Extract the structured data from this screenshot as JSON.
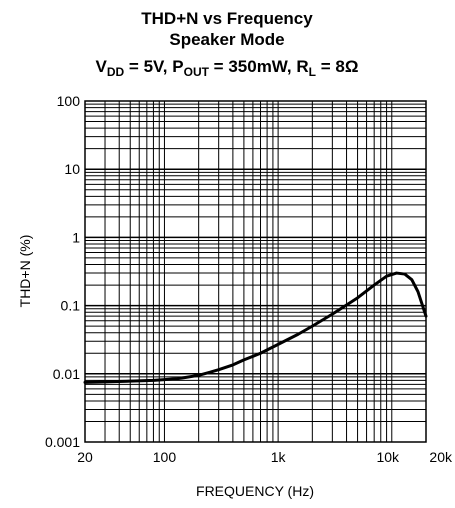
{
  "chart_data": {
    "type": "line",
    "title": "THD+N vs Frequency",
    "subtitle": "Speaker Mode",
    "condition": {
      "vdd_symbol": "V",
      "vdd_sub": "DD",
      "vdd_value": " = 5V, ",
      "pout_symbol": "P",
      "pout_sub": "OUT",
      "pout_value": " = 350mW, ",
      "rl_symbol": "R",
      "rl_sub": "L",
      "rl_value": " = 8Ω"
    },
    "xlabel": "FREQUENCY (Hz)",
    "ylabel": "THD+N (%)",
    "x_scale": "log",
    "y_scale": "log",
    "xlim": [
      20,
      20000
    ],
    "ylim": [
      0.001,
      100
    ],
    "grid": true,
    "x_ticks": [
      {
        "value": 20,
        "label": "20"
      },
      {
        "value": 100,
        "label": "100"
      },
      {
        "value": 1000,
        "label": "1k"
      },
      {
        "value": 10000,
        "label": "10k"
      },
      {
        "value": 20000,
        "label": "20k"
      }
    ],
    "y_ticks": [
      {
        "value": 100,
        "label": "100"
      },
      {
        "value": 10,
        "label": "10"
      },
      {
        "value": 1,
        "label": "1"
      },
      {
        "value": 0.1,
        "label": "0.1"
      },
      {
        "value": 0.01,
        "label": "0.01"
      },
      {
        "value": 0.001,
        "label": "0.001"
      }
    ],
    "series": [
      {
        "x": [
          20,
          30,
          50,
          80,
          100,
          130,
          150,
          200,
          250,
          300,
          400,
          500,
          700,
          1000,
          1500,
          2000,
          3000,
          5000,
          7000,
          9000,
          11000,
          13000,
          15000,
          17000,
          20000
        ],
        "y": [
          0.0075,
          0.0076,
          0.0078,
          0.008,
          0.0082,
          0.0085,
          0.0088,
          0.0095,
          0.0105,
          0.0115,
          0.0135,
          0.016,
          0.02,
          0.027,
          0.038,
          0.05,
          0.075,
          0.13,
          0.2,
          0.27,
          0.3,
          0.29,
          0.24,
          0.16,
          0.07
        ]
      }
    ]
  }
}
